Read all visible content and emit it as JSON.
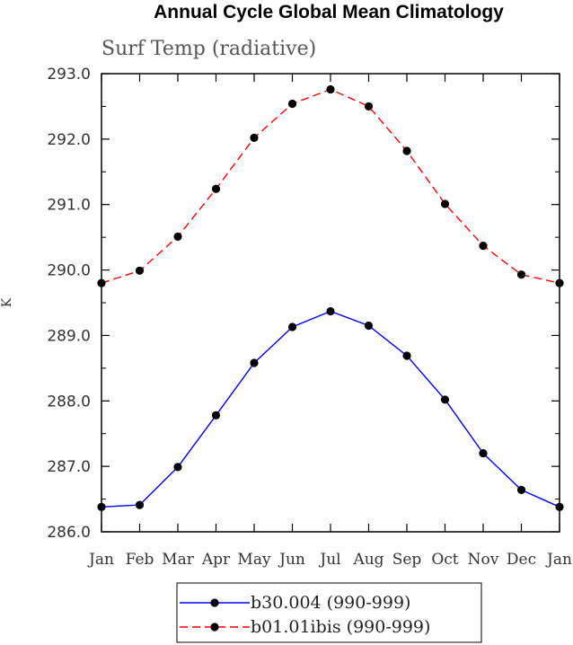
{
  "chart_data": {
    "type": "line",
    "title": "Annual Cycle Global Mean Climatology",
    "subtitle": "Surf Temp (radiative)",
    "xlabel": "",
    "ylabel": "K",
    "categories": [
      "Jan",
      "Feb",
      "Mar",
      "Apr",
      "May",
      "Jun",
      "Jul",
      "Aug",
      "Sep",
      "Oct",
      "Nov",
      "Dec",
      "Jan"
    ],
    "ylim": [
      286.0,
      293.0
    ],
    "yticks": [
      "286.0",
      "287.0",
      "288.0",
      "289.0",
      "290.0",
      "291.0",
      "292.0",
      "293.0"
    ],
    "legend_position": "bottom",
    "series": [
      {
        "name": "b30.004 (990-999)",
        "color": "#0000ff",
        "dash": "solid",
        "values": [
          286.38,
          286.41,
          286.99,
          287.78,
          288.58,
          289.13,
          289.37,
          289.15,
          288.69,
          288.02,
          287.2,
          286.64,
          286.38
        ]
      },
      {
        "name": "b01.01ibis (990-999)",
        "color": "#ff0000",
        "dash": "dashed",
        "values": [
          289.8,
          289.99,
          290.51,
          291.24,
          292.02,
          292.54,
          292.76,
          292.5,
          291.82,
          291.01,
          290.37,
          289.93,
          289.8
        ]
      }
    ]
  }
}
